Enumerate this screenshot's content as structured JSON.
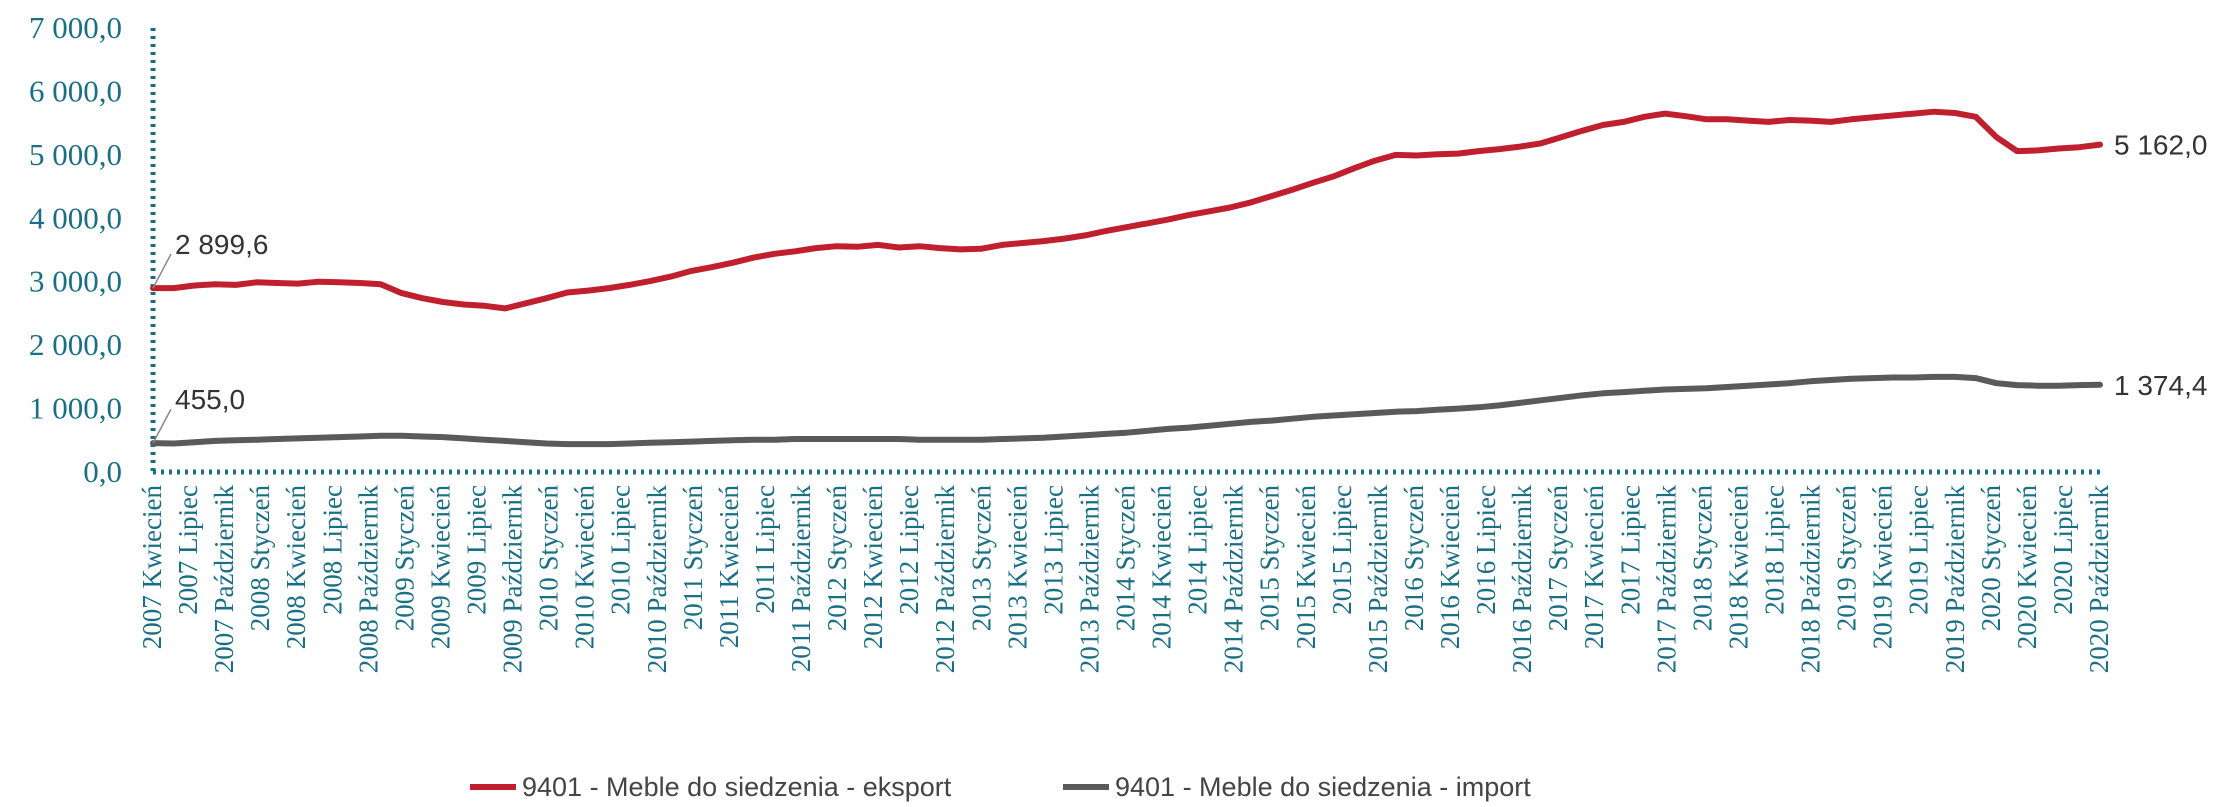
{
  "chart_data": {
    "type": "line",
    "title": "",
    "xlabel": "",
    "ylabel": "",
    "ylim": [
      0,
      7000
    ],
    "y_ticks": [
      "0,0",
      "1 000,0",
      "2 000,0",
      "3 000,0",
      "4 000,0",
      "5 000,0",
      "6 000,0",
      "7 000,0"
    ],
    "x_ticks": [
      "2007 Kwiecień",
      "2007 Lipiec",
      "2007 Październik",
      "2008 Styczeń",
      "2008 Kwiecień",
      "2008 Lipiec",
      "2008 Październik",
      "2009 Styczeń",
      "2009 Kwiecień",
      "2009 Lipiec",
      "2009 Październik",
      "2010 Styczeń",
      "2010 Kwiecień",
      "2010 Lipiec",
      "2010 Październik",
      "2011 Styczeń",
      "2011 Kwiecień",
      "2011 Lipiec",
      "2011 Październik",
      "2012 Styczeń",
      "2012 Kwiecień",
      "2012 Lipiec",
      "2012 Październik",
      "2013 Styczeń",
      "2013 Kwiecień",
      "2013 Lipiec",
      "2013 Październik",
      "2014 Styczeń",
      "2014 Kwiecień",
      "2014 Lipiec",
      "2014 Październik",
      "2015 Styczeń",
      "2015 Kwiecień",
      "2015 Lipiec",
      "2015 Październik",
      "2016 Styczeń",
      "2016 Kwiecień",
      "2016 Lipiec",
      "2016 Październik",
      "2017 Styczeń",
      "2017 Kwiecień",
      "2017 Lipiec",
      "2017 Październik",
      "2018 Styczeń",
      "2018 Kwiecień",
      "2018 Lipiec",
      "2018 Październik",
      "2019 Styczeń",
      "2019 Kwiecień",
      "2019 Lipiec",
      "2019 Październik",
      "2020 Styczeń",
      "2020 Kwiecień",
      "2020 Lipiec",
      "2020 Październik"
    ],
    "grid": false,
    "legend_position": "bottom",
    "series": [
      {
        "name": "9401 - Meble do siedzenia - eksport",
        "color": "#c0202e",
        "values": [
          2899.6,
          2900,
          2940,
          2960,
          2950,
          2990,
          2980,
          2970,
          3000,
          2990,
          2980,
          2960,
          2820,
          2740,
          2680,
          2640,
          2620,
          2580,
          2660,
          2740,
          2830,
          2860,
          2900,
          2950,
          3010,
          3080,
          3170,
          3230,
          3300,
          3380,
          3440,
          3480,
          3530,
          3560,
          3550,
          3580,
          3540,
          3560,
          3530,
          3510,
          3520,
          3580,
          3610,
          3640,
          3680,
          3730,
          3800,
          3860,
          3920,
          3980,
          4050,
          4110,
          4170,
          4250,
          4350,
          4450,
          4560,
          4660,
          4790,
          4910,
          5000,
          4990,
          5010,
          5020,
          5060,
          5090,
          5130,
          5180,
          5280,
          5380,
          5470,
          5520,
          5600,
          5650,
          5610,
          5560,
          5560,
          5540,
          5520,
          5550,
          5540,
          5520,
          5560,
          5590,
          5620,
          5650,
          5680,
          5660,
          5600,
          5280,
          5060,
          5070,
          5100,
          5120,
          5162.0
        ]
      },
      {
        "name": "9401 - Meble do siedzenia - import",
        "color": "#5a5a5a",
        "values": [
          455.0,
          450,
          470,
          490,
          500,
          510,
          520,
          530,
          540,
          550,
          560,
          570,
          570,
          560,
          550,
          530,
          510,
          490,
          470,
          450,
          440,
          440,
          440,
          450,
          460,
          470,
          480,
          490,
          500,
          510,
          510,
          520,
          520,
          520,
          520,
          520,
          520,
          510,
          510,
          510,
          510,
          520,
          530,
          540,
          560,
          580,
          600,
          620,
          650,
          680,
          700,
          730,
          760,
          790,
          810,
          840,
          870,
          890,
          910,
          930,
          950,
          960,
          980,
          1000,
          1020,
          1050,
          1090,
          1130,
          1170,
          1210,
          1240,
          1260,
          1280,
          1300,
          1310,
          1320,
          1340,
          1360,
          1380,
          1400,
          1430,
          1450,
          1470,
          1480,
          1490,
          1490,
          1500,
          1500,
          1480,
          1400,
          1370,
          1360,
          1360,
          1370,
          1374.4
        ]
      }
    ],
    "annotations": [
      {
        "series": 0,
        "point": "first",
        "label": "2 899,6"
      },
      {
        "series": 0,
        "point": "last",
        "label": "5 162,0"
      },
      {
        "series": 1,
        "point": "first",
        "label": "455,0"
      },
      {
        "series": 1,
        "point": "last",
        "label": "1 374,4"
      }
    ]
  }
}
